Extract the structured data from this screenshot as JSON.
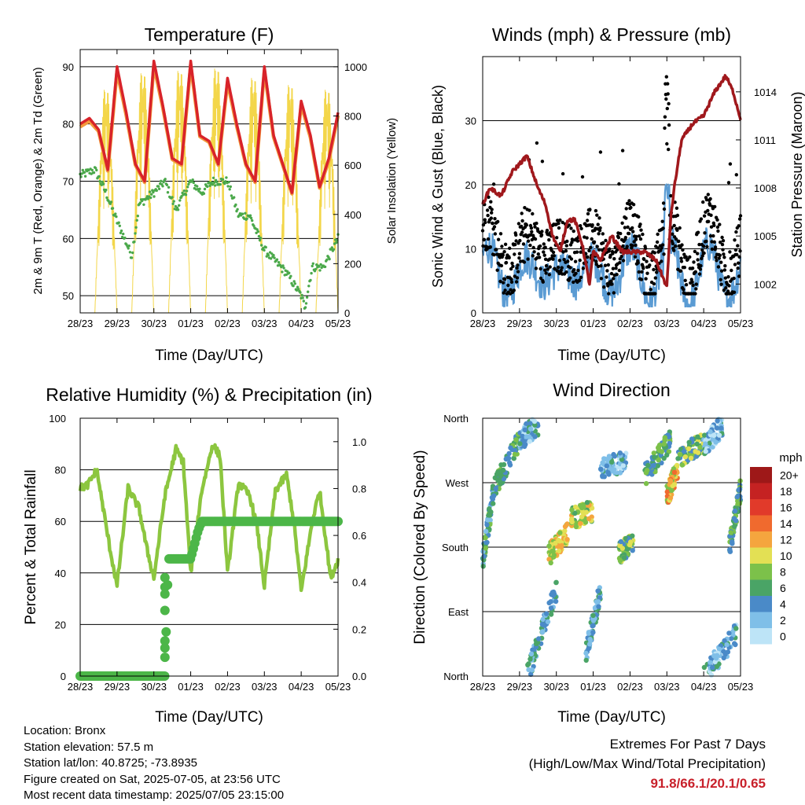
{
  "x_tick_labels": [
    "28/23",
    "29/23",
    "30/23",
    "01/23",
    "02/23",
    "03/23",
    "04/23",
    "05/23"
  ],
  "panels": {
    "temperature": {
      "title": "Temperature (F)",
      "xlabel": "Time (Day/UTC)",
      "ylabel_left": "2m & 9m T (Red, Orange) & 2m Td (Green)",
      "ylabel_right": "Solar Insolation (Yellow)",
      "yticks_left": [
        "50",
        "60",
        "70",
        "80",
        "90"
      ],
      "yticks_right": [
        "0",
        "200",
        "400",
        "600",
        "800",
        "1000"
      ]
    },
    "winds": {
      "title": "Winds (mph) & Pressure (mb)",
      "xlabel": "Time (Day/UTC)",
      "ylabel_left": "Sonic Wind & Gust (Blue, Black)",
      "ylabel_right": "Station Pressure (Maroon)",
      "yticks_left": [
        "0",
        "10",
        "20",
        "30"
      ],
      "yticks_right": [
        "1002",
        "1005",
        "1008",
        "1011",
        "1014"
      ]
    },
    "humidity": {
      "title": "Relative Humidity (%) & Precipitation (in)",
      "xlabel": "Time (Day/UTC)",
      "ylabel_left": "Percent & Total Rainfall",
      "yticks_left": [
        "0",
        "20",
        "40",
        "60",
        "80",
        "100"
      ],
      "yticks_right": [
        "0.0",
        "0.2",
        "0.4",
        "0.6",
        "0.8",
        "1.0"
      ]
    },
    "direction": {
      "title": "Wind Direction",
      "xlabel": "Time (Day/UTC)",
      "ylabel_left": "Direction (Colored By Speed)",
      "yticks_left": [
        "North",
        "East",
        "South",
        "West",
        "North"
      ],
      "colorbar_title": "mph",
      "colorbar_labels": [
        "0",
        "2",
        "4",
        "6",
        "8",
        "10",
        "12",
        "14",
        "16",
        "18",
        "20+"
      ],
      "colorbar_colors": [
        "#bde4f7",
        "#7fbfe8",
        "#4a8ac8",
        "#4aa466",
        "#7cc14a",
        "#e3e054",
        "#f5a53e",
        "#f06a2e",
        "#e13a2a",
        "#c52222",
        "#9e1818"
      ]
    }
  },
  "footer": {
    "location": "Location: Bronx",
    "elevation": "Station elevation: 57.5 m",
    "latlon": "Station lat/lon: 40.8725; -73.8935",
    "created": "Figure created on Sat, 2025-07-05, at 23:56 UTC",
    "recent": "Most recent data timestamp: 2025/07/05 23:15:00",
    "extremes_title": "Extremes For Past 7 Days",
    "extremes_desc": "(High/Low/Max Wind/Total Precipitation)",
    "extremes_values": "91.8/66.1/20.1/0.65"
  },
  "colors": {
    "temp_2m": "#d8232a",
    "temp_9m": "#f39a3c",
    "dewpoint": "#4aa84a",
    "solar": "#f3d64a",
    "wind": "#5a9bd3",
    "gust": "#000000",
    "pressure": "#a0181c",
    "rh": "#8cc63f",
    "precip": "#4cb648"
  },
  "chart_data": [
    {
      "type": "line",
      "title": "Temperature (F)",
      "xlabel": "Time (Day/UTC)",
      "x_range_days": [
        0,
        7
      ],
      "ylim": [
        47,
        93
      ],
      "y2lim": [
        0,
        1070
      ],
      "grid": true,
      "series": [
        {
          "name": "2m T",
          "x": [
            0,
            0.25,
            0.5,
            0.75,
            1.0,
            1.25,
            1.5,
            1.75,
            2.0,
            2.25,
            2.5,
            2.75,
            3.0,
            3.25,
            3.5,
            3.75,
            4.0,
            4.25,
            4.5,
            4.75,
            5.0,
            5.25,
            5.5,
            5.75,
            6.0,
            6.25,
            6.5,
            6.75,
            7.0
          ],
          "values": [
            80,
            81,
            79,
            72,
            90,
            82,
            73,
            70,
            91,
            83,
            74,
            73,
            91,
            78,
            77,
            73,
            88,
            80,
            73,
            70,
            90,
            78,
            73,
            68,
            84,
            78,
            69,
            74,
            82
          ]
        },
        {
          "name": "9m T",
          "x": [
            0,
            0.25,
            0.5,
            0.75,
            1.0,
            1.25,
            1.5,
            1.75,
            2.0,
            2.25,
            2.5,
            2.75,
            3.0,
            3.25,
            3.5,
            3.75,
            4.0,
            4.25,
            4.5,
            4.75,
            5.0,
            5.25,
            5.5,
            5.75,
            6.0,
            6.25,
            6.5,
            6.75,
            7.0
          ],
          "values": [
            79.5,
            80.5,
            78.7,
            71.8,
            89.2,
            81.5,
            72.8,
            69.8,
            90.2,
            82.6,
            73.8,
            72.8,
            90.3,
            77.8,
            76.8,
            72.8,
            87.3,
            79.6,
            72.8,
            69.8,
            89.3,
            77.7,
            72.8,
            67.8,
            83.4,
            77.6,
            68.8,
            73.6,
            81.5
          ]
        },
        {
          "name": "2m Td",
          "x": [
            0,
            0.4,
            0.7,
            1.0,
            1.2,
            1.4,
            1.6,
            2.0,
            2.3,
            2.6,
            3.0,
            3.3,
            3.6,
            4.0,
            4.3,
            4.6,
            5.0,
            5.3,
            5.6,
            6.0,
            6.1,
            6.3,
            6.6,
            7.0
          ],
          "values": [
            71,
            72,
            68,
            63,
            60,
            57,
            66,
            68,
            70,
            65,
            70,
            68,
            70,
            70,
            64,
            64,
            58,
            56,
            54,
            50,
            48,
            55,
            55,
            60
          ]
        },
        {
          "name": "Solar Insolation",
          "days_peaks": [
            0.7,
            1.7,
            2.7,
            3.7,
            4.7,
            5.7,
            6.7
          ],
          "peak_values": [
            940,
            1010,
            1020,
            1030,
            990,
            960,
            940
          ]
        }
      ]
    },
    {
      "type": "line",
      "title": "Winds (mph) & Pressure (mb)",
      "xlabel": "Time (Day/UTC)",
      "ylim": [
        0,
        40
      ],
      "y2lim": [
        1000.2,
        1016.2
      ],
      "grid": true,
      "series": [
        {
          "name": "Station Pressure",
          "x": [
            0,
            0.2,
            0.5,
            0.8,
            1.2,
            1.5,
            1.7,
            1.9,
            2.1,
            2.3,
            2.5,
            2.7,
            2.9,
            3.0,
            3.2,
            3.5,
            3.8,
            4.1,
            4.4,
            4.7,
            5.0,
            5.1,
            5.2,
            5.4,
            5.7,
            6.0,
            6.3,
            6.6,
            6.8,
            7.0
          ],
          "values": [
            1007,
            1008,
            1007.5,
            1009,
            1010,
            1008,
            1007,
            1005,
            1004,
            1006,
            1006,
            1004.5,
            1002,
            1004,
            1003.5,
            1005,
            1004,
            1004,
            1004,
            1003.5,
            1001.8,
            1006,
            1008,
            1011,
            1012,
            1012.5,
            1014,
            1015,
            1014,
            1012.3
          ]
        },
        {
          "name": "Sonic Wind",
          "typical_range": [
            3,
            12
          ],
          "max": 20
        },
        {
          "name": "Gust",
          "typical_range": [
            5,
            18
          ],
          "max": 37.5
        }
      ]
    },
    {
      "type": "line",
      "title": "Relative Humidity (%) & Precipitation (in)",
      "xlabel": "Time (Day/UTC)",
      "ylim": [
        0,
        100
      ],
      "y2lim": [
        0,
        1.1
      ],
      "grid": true,
      "series": [
        {
          "name": "Relative Humidity",
          "x": [
            0,
            0.2,
            0.45,
            0.8,
            1.0,
            1.3,
            1.6,
            1.8,
            2.0,
            2.3,
            2.6,
            2.8,
            3.0,
            3.3,
            3.6,
            3.8,
            4.0,
            4.3,
            4.6,
            4.8,
            5.0,
            5.3,
            5.6,
            5.8,
            6.0,
            6.3,
            6.5,
            6.8,
            7.0
          ],
          "values": [
            73,
            74,
            80,
            50,
            35,
            73,
            65,
            50,
            38,
            70,
            88,
            83,
            40,
            72,
            90,
            85,
            40,
            75,
            70,
            58,
            35,
            72,
            78,
            60,
            33,
            60,
            72,
            38,
            45
          ]
        },
        {
          "name": "Total Precipitation",
          "x": [
            0,
            2.3,
            2.32,
            2.35,
            2.4,
            3.0,
            3.2,
            3.3,
            4.0,
            5.0,
            7.0
          ],
          "values": [
            0,
            0,
            0.1,
            0.3,
            0.5,
            0.5,
            0.62,
            0.66,
            0.66,
            0.66,
            0.66
          ]
        }
      ]
    },
    {
      "type": "scatter",
      "title": "Wind Direction",
      "xlabel": "Time (Day/UTC)",
      "ylim_degrees": [
        0,
        360
      ],
      "y_tick_values": [
        0,
        90,
        180,
        270,
        360
      ],
      "grid": true,
      "color_scale_mph": [
        0,
        20
      ],
      "segments": [
        {
          "day_start": 0,
          "day_end": 0.3,
          "dir_start": 160,
          "dir_end": 260,
          "speed": 5
        },
        {
          "day_start": 0.3,
          "day_end": 1.0,
          "dir_start": 260,
          "dir_end": 330,
          "speed": 6
        },
        {
          "day_start": 1.0,
          "day_end": 1.5,
          "dir_start": 330,
          "dir_end": 350,
          "speed": 3
        },
        {
          "day_start": 1.2,
          "day_end": 2.0,
          "dir_start": 0,
          "dir_end": 120,
          "speed": 4
        },
        {
          "day_start": 1.8,
          "day_end": 2.3,
          "dir_start": 170,
          "dir_end": 200,
          "speed": 10
        },
        {
          "day_start": 2.4,
          "day_end": 3.0,
          "dir_start": 220,
          "dir_end": 230,
          "speed": 9
        },
        {
          "day_start": 2.8,
          "day_end": 3.2,
          "dir_start": 30,
          "dir_end": 120,
          "speed": 4
        },
        {
          "day_start": 3.2,
          "day_end": 3.9,
          "dir_start": 290,
          "dir_end": 300,
          "speed": 3
        },
        {
          "day_start": 3.7,
          "day_end": 4.1,
          "dir_start": 170,
          "dir_end": 190,
          "speed": 7
        },
        {
          "day_start": 4.4,
          "day_end": 5.1,
          "dir_start": 280,
          "dir_end": 330,
          "speed": 6
        },
        {
          "day_start": 5.0,
          "day_end": 5.3,
          "dir_start": 250,
          "dir_end": 290,
          "speed": 11
        },
        {
          "day_start": 5.3,
          "day_end": 6.0,
          "dir_start": 300,
          "dir_end": 330,
          "speed": 7
        },
        {
          "day_start": 6.0,
          "day_end": 6.5,
          "dir_start": 320,
          "dir_end": 350,
          "speed": 3
        },
        {
          "day_start": 6.0,
          "day_end": 6.9,
          "dir_start": 0,
          "dir_end": 60,
          "speed": 3
        },
        {
          "day_start": 6.7,
          "day_end": 7.0,
          "dir_start": 180,
          "dir_end": 260,
          "speed": 6
        }
      ]
    }
  ]
}
